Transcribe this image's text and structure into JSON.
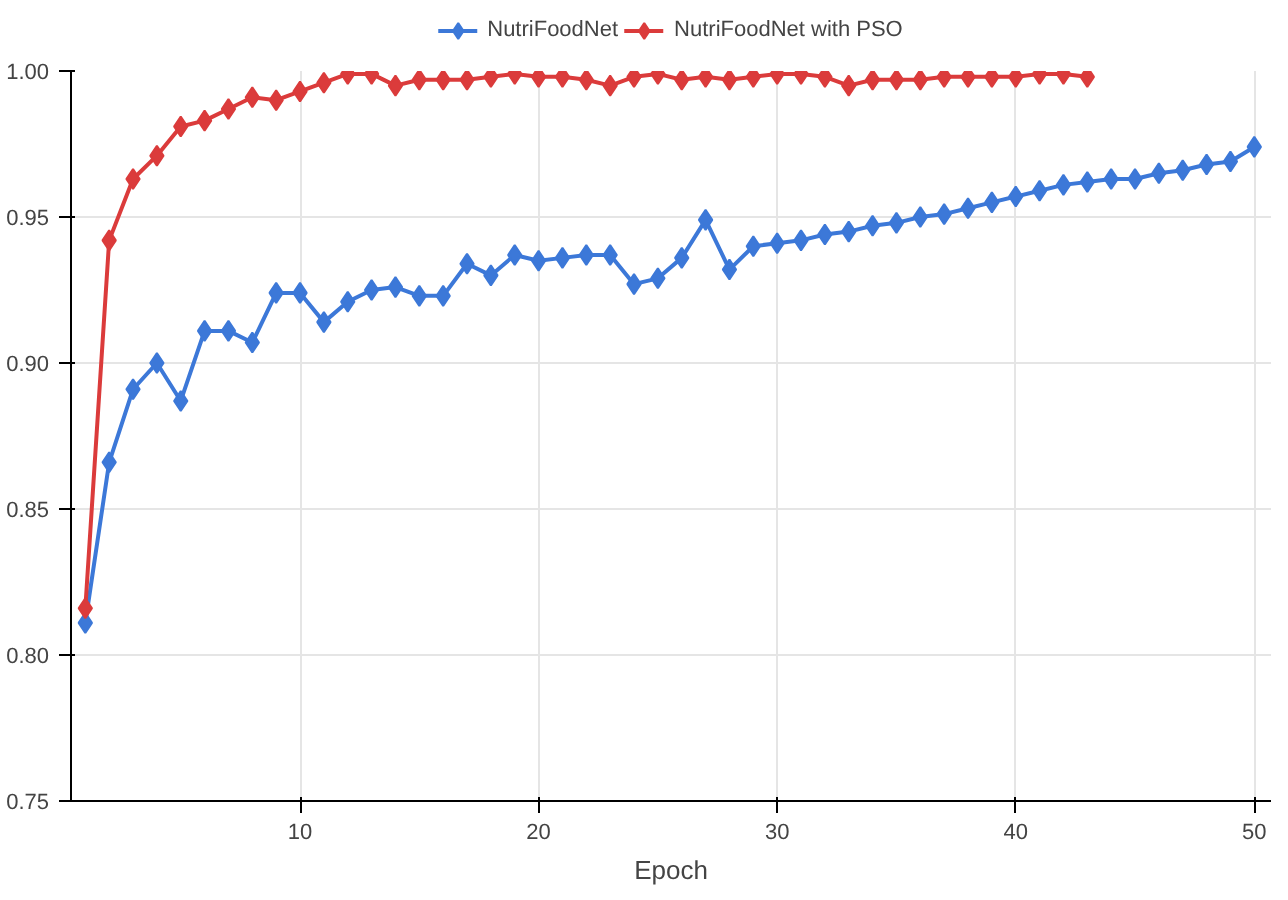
{
  "chart_data": {
    "type": "line",
    "xlabel": "Epoch",
    "xlim": [
      0.4,
      50.7
    ],
    "xticks": [
      10,
      20,
      30,
      40,
      50
    ],
    "ylim": [
      0.75,
      1.0
    ],
    "yticks": [
      {
        "value": 0.75,
        "label": "0.75"
      },
      {
        "value": 0.8,
        "label": "0.80"
      },
      {
        "value": 0.85,
        "label": "0.85"
      },
      {
        "value": 0.9,
        "label": "0.90"
      },
      {
        "value": 0.95,
        "label": "0.95"
      },
      {
        "value": 1.0,
        "label": "1.00"
      }
    ],
    "grid": true,
    "legend": "top",
    "marker": "diamond",
    "line_style": "solid",
    "series": [
      {
        "name": "NutriFoodNet",
        "color": "#3c78d8",
        "x": [
          1,
          2,
          3,
          4,
          5,
          6,
          7,
          8,
          9,
          10,
          11,
          12,
          13,
          14,
          15,
          16,
          17,
          18,
          19,
          20,
          21,
          22,
          23,
          24,
          25,
          26,
          27,
          28,
          29,
          30,
          31,
          32,
          33,
          34,
          35,
          36,
          37,
          38,
          39,
          40,
          41,
          42,
          43,
          44,
          45,
          46,
          47,
          48,
          49,
          50
        ],
        "values": [
          0.811,
          0.866,
          0.891,
          0.9,
          0.887,
          0.911,
          0.911,
          0.907,
          0.924,
          0.924,
          0.914,
          0.921,
          0.925,
          0.926,
          0.923,
          0.923,
          0.934,
          0.93,
          0.937,
          0.935,
          0.936,
          0.937,
          0.937,
          0.927,
          0.929,
          0.936,
          0.949,
          0.932,
          0.94,
          0.941,
          0.942,
          0.944,
          0.945,
          0.947,
          0.948,
          0.95,
          0.951,
          0.953,
          0.955,
          0.957,
          0.959,
          0.961,
          0.962,
          0.963,
          0.963,
          0.965,
          0.966,
          0.968,
          0.969,
          0.974
        ]
      },
      {
        "name": "NutriFoodNet with PSO",
        "color": "#db3b3b",
        "x": [
          1,
          2,
          3,
          4,
          5,
          6,
          7,
          8,
          9,
          10,
          11,
          12,
          13,
          14,
          15,
          16,
          17,
          18,
          19,
          20,
          21,
          22,
          23,
          24,
          25,
          26,
          27,
          28,
          29,
          30,
          31,
          32,
          33,
          34,
          35,
          36,
          37,
          38,
          39,
          40,
          41,
          42,
          43
        ],
        "values": [
          0.816,
          0.942,
          0.963,
          0.971,
          0.981,
          0.983,
          0.987,
          0.991,
          0.99,
          0.993,
          0.996,
          0.999,
          0.999,
          0.995,
          0.997,
          0.997,
          0.997,
          0.998,
          0.999,
          0.998,
          0.998,
          0.997,
          0.995,
          0.998,
          0.999,
          0.997,
          0.998,
          0.997,
          0.998,
          0.999,
          0.999,
          0.998,
          0.995,
          0.997,
          0.997,
          0.997,
          0.998,
          0.998,
          0.998,
          0.998,
          0.999,
          0.999,
          0.998
        ]
      }
    ]
  }
}
